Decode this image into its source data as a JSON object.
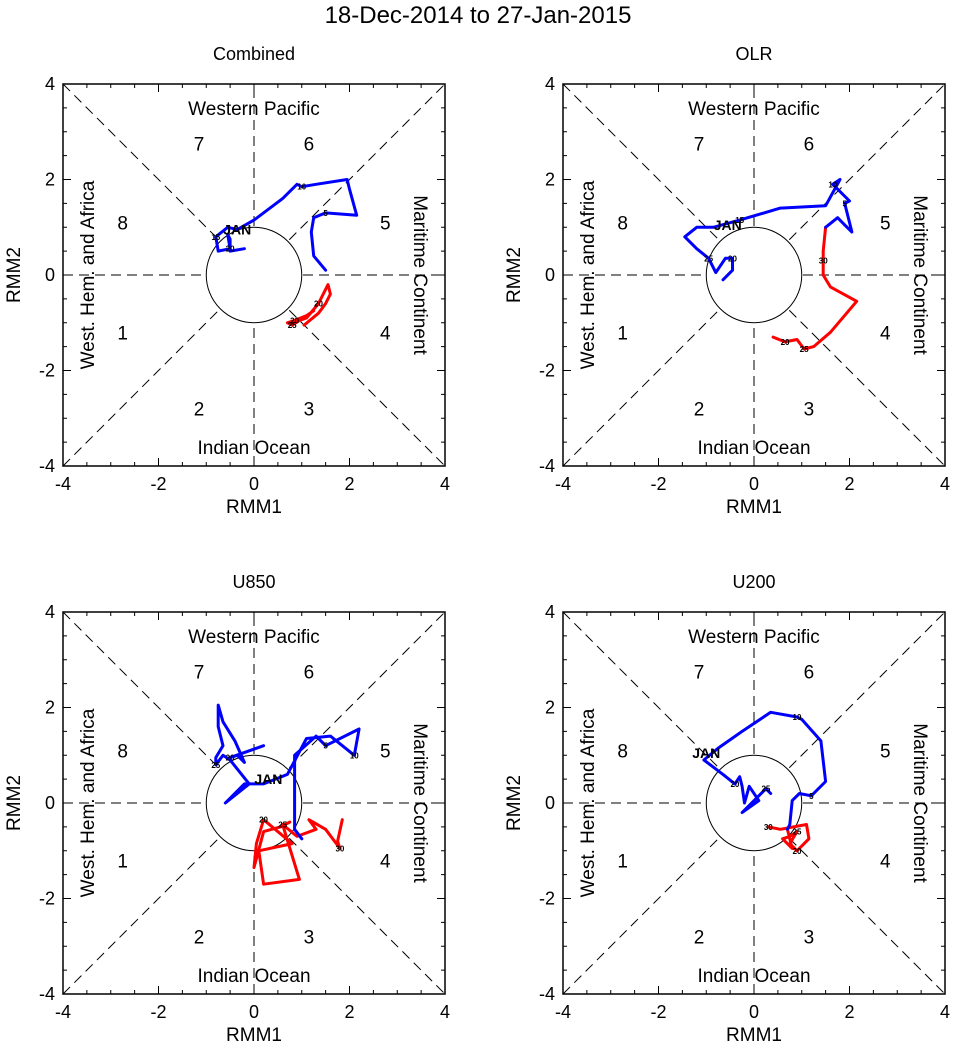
{
  "page_title": "18-Dec-2014 to 27-Jan-2015",
  "colors": {
    "dec": "#ff0000",
    "jan": "#0000ff",
    "axis": "#000000",
    "background": "#ffffff"
  },
  "axes_common": {
    "xlabel": "RMM1",
    "ylabel": "RMM2",
    "xlim": [
      -4,
      4
    ],
    "ylim": [
      -4,
      4
    ],
    "xticks": [
      "-4",
      "-2",
      "0",
      "2",
      "4"
    ],
    "yticks": [
      "-4",
      "-2",
      "0",
      "2",
      "4"
    ],
    "region_labels": {
      "top": "Western Pacific",
      "bottom": "Indian Ocean",
      "left": "West. Hem. and Africa",
      "right": "Maritime Continent"
    },
    "phase_labels": [
      "1",
      "2",
      "3",
      "4",
      "5",
      "6",
      "7",
      "8"
    ],
    "unit_circle_radius": 1
  },
  "chart_data": [
    {
      "type": "line",
      "title": "Combined",
      "month_label": "JAN",
      "series": [
        {
          "name": "December",
          "color": "#ff0000",
          "points": [
            [
              1.05,
              -1.05
            ],
            [
              1.35,
              -0.8
            ],
            [
              1.5,
              -0.6
            ],
            [
              1.6,
              -0.4
            ],
            [
              1.55,
              -0.2
            ],
            [
              1.35,
              -0.6
            ],
            [
              1.1,
              -0.9
            ],
            [
              0.95,
              -0.95
            ],
            [
              0.8,
              -1.05
            ],
            [
              0.7,
              -1.0
            ],
            [
              0.85,
              -0.95
            ],
            [
              1.1,
              -0.85
            ],
            [
              1.25,
              -0.75
            ]
          ],
          "labels": [
            {
              "text": "20",
              "at": 5
            },
            {
              "text": "25",
              "at": 8
            },
            {
              "text": "20",
              "at": 10
            }
          ]
        },
        {
          "name": "January",
          "color": "#0000ff",
          "points": [
            [
              1.5,
              0.1
            ],
            [
              1.25,
              0.4
            ],
            [
              1.2,
              0.9
            ],
            [
              1.25,
              1.2
            ],
            [
              1.5,
              1.3
            ],
            [
              2.15,
              1.25
            ],
            [
              2.0,
              1.8
            ],
            [
              1.95,
              2.0
            ],
            [
              1.3,
              1.9
            ],
            [
              1.0,
              1.85
            ],
            [
              0.9,
              1.9
            ],
            [
              0.6,
              1.6
            ],
            [
              0.0,
              1.15
            ],
            [
              -0.35,
              0.95
            ],
            [
              -0.55,
              1.0
            ],
            [
              -0.8,
              0.8
            ],
            [
              -0.75,
              0.5
            ],
            [
              -0.5,
              0.55
            ],
            [
              -0.55,
              0.85
            ],
            [
              -0.5,
              0.75
            ],
            [
              -0.5,
              0.5
            ],
            [
              -0.2,
              0.55
            ]
          ],
          "labels": [
            {
              "text": "5",
              "at": 4
            },
            {
              "text": "10",
              "at": 9
            },
            {
              "text": "15",
              "at": 15
            },
            {
              "text": "20",
              "at": 17
            }
          ]
        }
      ]
    },
    {
      "type": "line",
      "title": "OLR",
      "month_label": "JAN",
      "series": [
        {
          "name": "December",
          "color": "#ff0000",
          "points": [
            [
              0.4,
              -1.3
            ],
            [
              0.65,
              -1.4
            ],
            [
              0.9,
              -1.35
            ],
            [
              1.05,
              -1.55
            ],
            [
              1.25,
              -1.5
            ],
            [
              1.6,
              -1.2
            ],
            [
              2.15,
              -0.55
            ],
            [
              1.6,
              -0.25
            ],
            [
              1.45,
              0.0
            ],
            [
              1.45,
              0.3
            ],
            [
              1.45,
              0.5
            ],
            [
              1.5,
              1.0
            ]
          ],
          "labels": [
            {
              "text": "20",
              "at": 1
            },
            {
              "text": "25",
              "at": 3
            },
            {
              "text": "30",
              "at": 9
            }
          ]
        },
        {
          "name": "January",
          "color": "#0000ff",
          "points": [
            [
              1.5,
              1.0
            ],
            [
              1.75,
              1.2
            ],
            [
              1.9,
              1.05
            ],
            [
              2.05,
              0.9
            ],
            [
              1.9,
              1.5
            ],
            [
              2.0,
              1.55
            ],
            [
              1.65,
              1.9
            ],
            [
              1.8,
              2.0
            ],
            [
              1.5,
              1.45
            ],
            [
              0.55,
              1.4
            ],
            [
              -0.3,
              1.15
            ],
            [
              -0.85,
              1.0
            ],
            [
              -1.2,
              1.0
            ],
            [
              -1.45,
              0.8
            ],
            [
              -1.2,
              0.55
            ],
            [
              -0.95,
              0.35
            ],
            [
              -0.8,
              0.05
            ],
            [
              -0.6,
              0.35
            ],
            [
              -0.45,
              0.35
            ],
            [
              -0.45,
              0.1
            ],
            [
              -0.65,
              -0.1
            ]
          ],
          "labels": [
            {
              "text": "5",
              "at": 4
            },
            {
              "text": "10",
              "at": 6
            },
            {
              "text": "15",
              "at": 10
            },
            {
              "text": "25",
              "at": 15
            },
            {
              "text": "20",
              "at": 18
            }
          ]
        }
      ]
    },
    {
      "type": "line",
      "title": "U850",
      "month_label": "JAN",
      "series": [
        {
          "name": "December",
          "color": "#ff0000",
          "points": [
            [
              1.85,
              -0.35
            ],
            [
              1.75,
              -0.8
            ],
            [
              1.8,
              -0.95
            ],
            [
              1.5,
              -0.55
            ],
            [
              1.15,
              -0.35
            ],
            [
              1.3,
              -0.55
            ],
            [
              0.9,
              -0.7
            ],
            [
              0.6,
              -0.45
            ],
            [
              0.95,
              -1.6
            ],
            [
              0.2,
              -1.7
            ],
            [
              0.1,
              -1.0
            ],
            [
              0.8,
              -0.85
            ],
            [
              0.2,
              -0.35
            ],
            [
              0.05,
              -0.85
            ],
            [
              0.0,
              -1.35
            ],
            [
              0.2,
              -0.6
            ],
            [
              0.55,
              -0.5
            ],
            [
              0.75,
              -0.4
            ]
          ],
          "labels": [
            {
              "text": "30",
              "at": 2
            },
            {
              "text": "25",
              "at": 7
            },
            {
              "text": "20",
              "at": 12
            }
          ]
        },
        {
          "name": "January",
          "color": "#0000ff",
          "points": [
            [
              1.0,
              -0.75
            ],
            [
              0.85,
              -0.55
            ],
            [
              0.85,
              0.1
            ],
            [
              0.85,
              1.0
            ],
            [
              1.3,
              1.4
            ],
            [
              1.5,
              1.2
            ],
            [
              2.2,
              1.55
            ],
            [
              2.1,
              1.0
            ],
            [
              1.6,
              1.4
            ],
            [
              1.1,
              1.35
            ],
            [
              0.7,
              0.6
            ],
            [
              0.2,
              0.4
            ],
            [
              -0.2,
              0.4
            ],
            [
              -0.6,
              0.0
            ],
            [
              -0.1,
              0.4
            ],
            [
              -0.5,
              0.9
            ],
            [
              -0.65,
              1.0
            ],
            [
              -0.8,
              0.8
            ],
            [
              -0.8,
              0.95
            ],
            [
              -0.65,
              1.2
            ],
            [
              -0.75,
              1.6
            ],
            [
              -0.75,
              2.05
            ],
            [
              -0.65,
              1.7
            ],
            [
              -0.4,
              1.3
            ],
            [
              -0.2,
              0.85
            ],
            [
              -0.35,
              1.0
            ],
            [
              -0.5,
              0.95
            ],
            [
              0.2,
              1.2
            ]
          ],
          "labels": [
            {
              "text": "5",
              "at": 5
            },
            {
              "text": "10",
              "at": 7
            },
            {
              "text": "25",
              "at": 17
            },
            {
              "text": "20",
              "at": 26
            }
          ]
        }
      ]
    },
    {
      "type": "line",
      "title": "U200",
      "month_label": "JAN",
      "series": [
        {
          "name": "December",
          "color": "#ff0000",
          "points": [
            [
              0.3,
              -0.5
            ],
            [
              0.55,
              -0.55
            ],
            [
              1.1,
              -0.45
            ],
            [
              1.15,
              -0.75
            ],
            [
              0.9,
              -1.0
            ],
            [
              0.75,
              -0.85
            ],
            [
              0.9,
              -0.6
            ],
            [
              0.75,
              -0.7
            ],
            [
              0.6,
              -0.75
            ],
            [
              0.8,
              -0.95
            ],
            [
              0.7,
              -0.55
            ]
          ],
          "labels": [
            {
              "text": "30",
              "at": 0
            },
            {
              "text": "20",
              "at": 4
            },
            {
              "text": "25",
              "at": 6
            }
          ]
        },
        {
          "name": "January",
          "color": "#0000ff",
          "points": [
            [
              0.7,
              -0.55
            ],
            [
              0.75,
              -0.45
            ],
            [
              0.8,
              0.05
            ],
            [
              0.95,
              0.2
            ],
            [
              1.2,
              0.15
            ],
            [
              1.5,
              0.45
            ],
            [
              1.4,
              1.3
            ],
            [
              1.0,
              1.75
            ],
            [
              0.9,
              1.8
            ],
            [
              0.35,
              1.9
            ],
            [
              -0.25,
              1.5
            ],
            [
              -0.75,
              1.15
            ],
            [
              -1.05,
              0.9
            ],
            [
              -0.65,
              0.6
            ],
            [
              -0.4,
              0.4
            ],
            [
              -0.3,
              0.55
            ],
            [
              -0.25,
              0.35
            ],
            [
              -0.2,
              0.0
            ],
            [
              -0.1,
              0.35
            ],
            [
              0.1,
              0.05
            ],
            [
              -0.25,
              -0.2
            ],
            [
              0.25,
              0.3
            ],
            [
              0.35,
              0.2
            ]
          ],
          "labels": [
            {
              "text": "5",
              "at": 4
            },
            {
              "text": "10",
              "at": 8
            },
            {
              "text": "20",
              "at": 14
            },
            {
              "text": "25",
              "at": 21
            }
          ]
        }
      ]
    }
  ]
}
